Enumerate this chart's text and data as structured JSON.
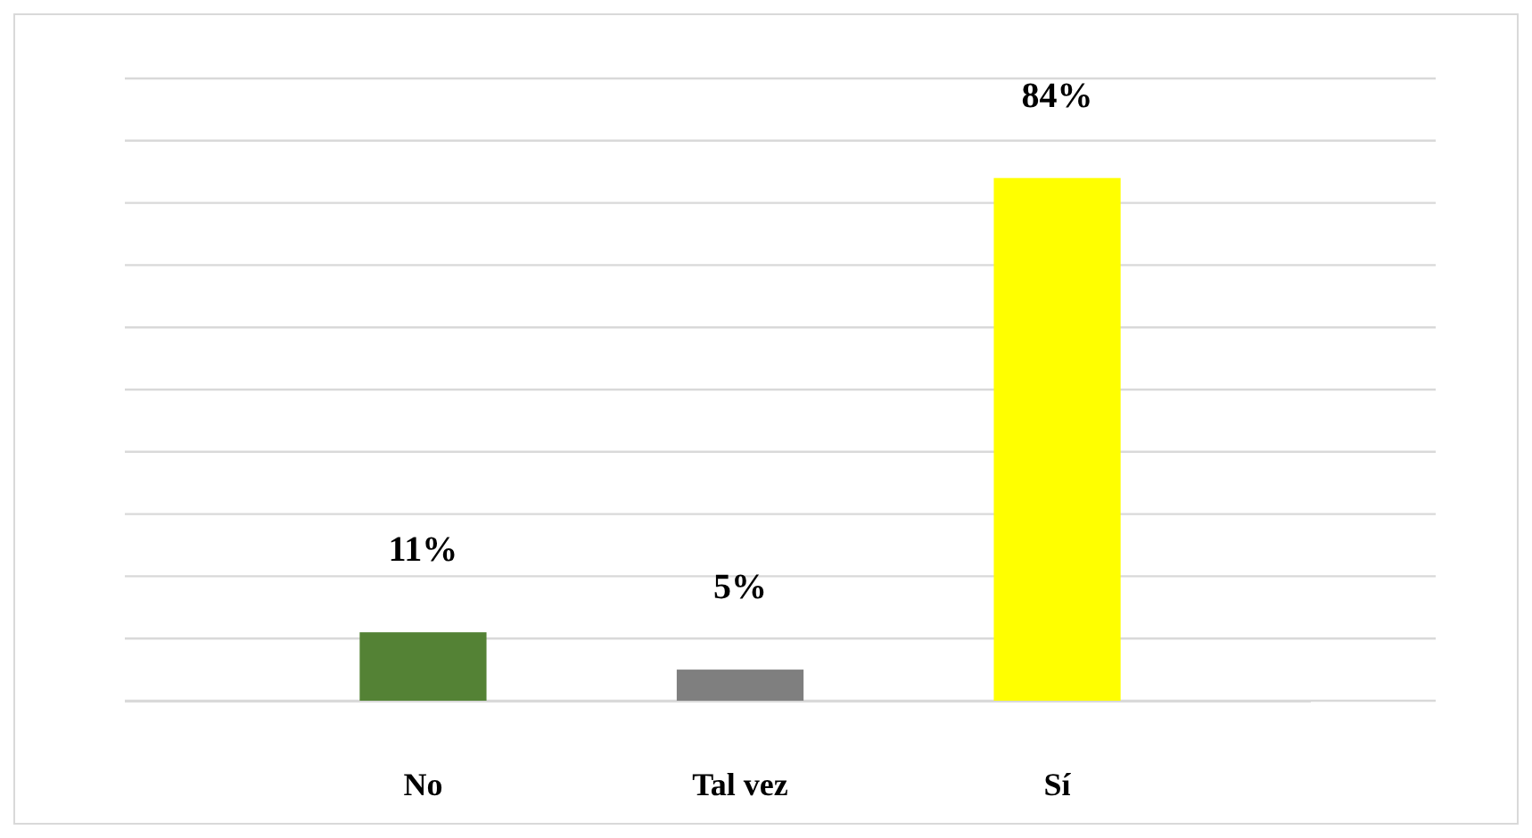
{
  "chart_data": {
    "type": "bar",
    "categories": [
      "No",
      "Tal vez",
      "Sí"
    ],
    "values": [
      11,
      5,
      84
    ],
    "colors": [
      "#548235",
      "#7f7f7f",
      "#ffff00"
    ],
    "value_labels": [
      "11%",
      "5%",
      "84%"
    ],
    "ylim": [
      0,
      100
    ],
    "yticks": [
      {
        "value": 0,
        "label": null
      },
      {
        "value": 10,
        "label": null
      },
      {
        "value": 20,
        "label": null
      },
      {
        "value": 30,
        "label": null
      },
      {
        "value": 40,
        "label": null
      },
      {
        "value": 50,
        "label": null
      },
      {
        "value": 60,
        "label": null
      },
      {
        "value": 70,
        "label": null
      },
      {
        "value": 80,
        "label": null
      },
      {
        "value": 90,
        "label": null
      },
      {
        "value": 100,
        "label": null
      }
    ],
    "grid": "y",
    "tick_labels": "x"
  }
}
